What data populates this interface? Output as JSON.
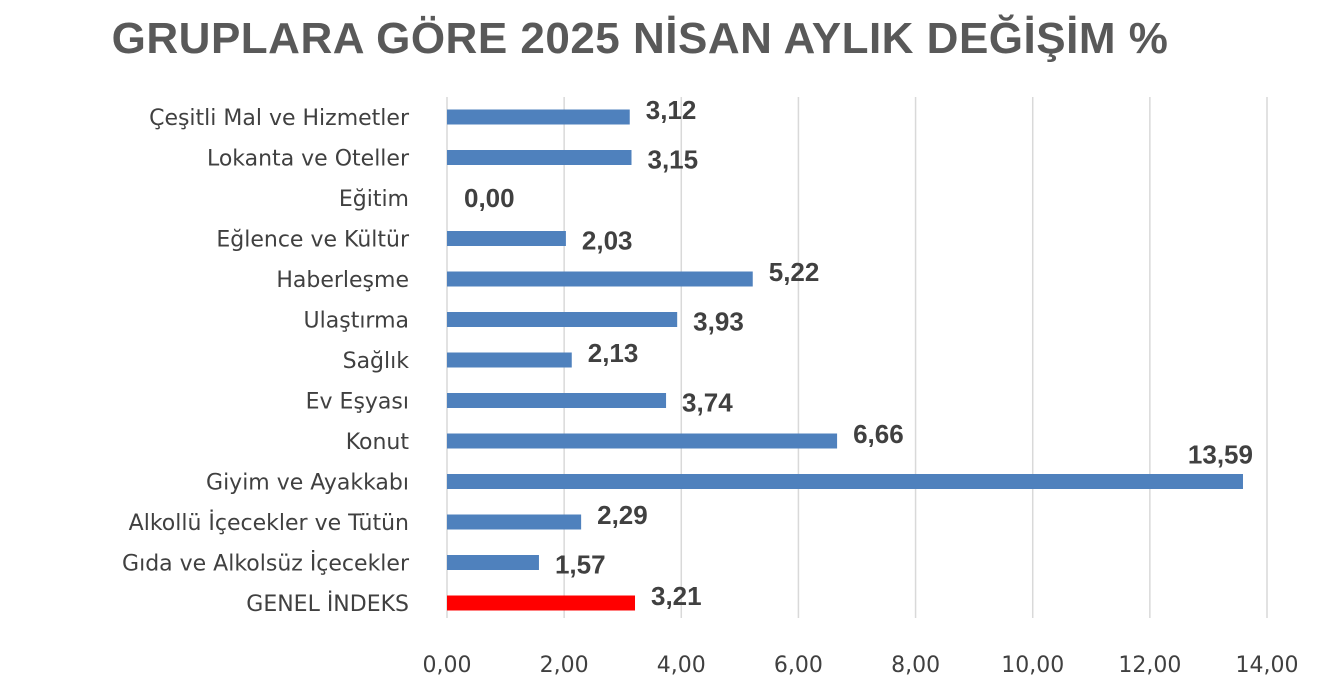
{
  "chart_data": {
    "type": "bar",
    "orientation": "horizontal",
    "title": "GRUPLARA GÖRE 2025 NİSAN AYLIK DEĞİŞİM %",
    "xlabel": "",
    "ylabel": "",
    "xlim": [
      0,
      14
    ],
    "grid": true,
    "legend": "none",
    "x_ticks": [
      "0,00",
      "2,00",
      "4,00",
      "6,00",
      "8,00",
      "10,00",
      "12,00",
      "14,00"
    ],
    "categories": [
      "Çeşitli Mal ve Hizmetler",
      "Lokanta ve Oteller",
      "Eğitim",
      "Eğlence ve Kültür",
      "Haberleşme",
      "Ulaştırma",
      "Sağlık",
      "Ev Eşyası",
      "Konut",
      "Giyim ve Ayakkabı",
      "Alkollü İçecekler ve Tütün",
      "Gıda ve Alkolsüz İçecekler",
      "GENEL İNDEKS"
    ],
    "values": [
      3.12,
      3.15,
      0.0,
      2.03,
      5.22,
      3.93,
      2.13,
      3.74,
      6.66,
      13.59,
      2.29,
      1.57,
      3.21
    ],
    "data_labels": [
      "3,12",
      "3,15",
      "0,00",
      "2,03",
      "5,22",
      "3,93",
      "2,13",
      "3,74",
      "6,66",
      "13,59",
      "2,29",
      "1,57",
      "3,21"
    ],
    "colors": {
      "bar": "#4f81bd",
      "highlight": "#ff0000",
      "highlight_category": "GENEL İNDEKS",
      "gridline": "#d9d9d9",
      "title": "#595959",
      "text": "#404040"
    }
  }
}
